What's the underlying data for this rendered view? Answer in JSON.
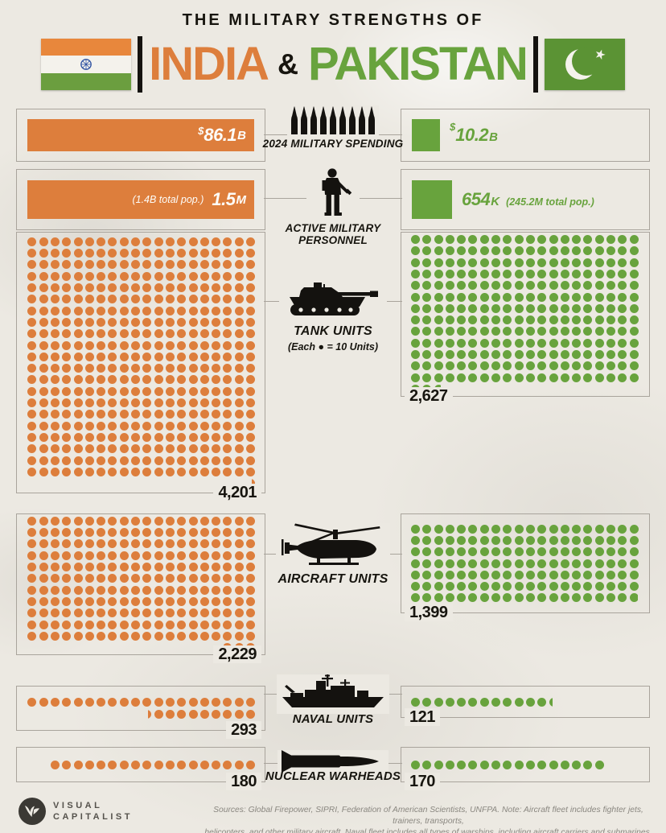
{
  "header": {
    "kicker": "THE MILITARY STRENGTHS OF",
    "country_left": "INDIA",
    "ampersand": "&",
    "country_right": "PAKISTAN"
  },
  "colors": {
    "india": "#DD7E3C",
    "pakistan": "#68A33D",
    "flag_green": "#5B9334",
    "paper": "#ECE9E2",
    "line": "#A9A49C",
    "ink": "#17150F"
  },
  "sections": {
    "spending": {
      "label": "2024 MILITARY SPENDING",
      "india": {
        "currency": "$",
        "value": "86.1",
        "suffix": "B"
      },
      "pakistan": {
        "currency": "$",
        "value": "10.2",
        "suffix": "B"
      }
    },
    "personnel": {
      "label_line1": "ACTIVE MILITARY",
      "label_line2": "PERSONNEL",
      "india": {
        "note": "(1.4B total pop.)",
        "value": "1.5",
        "suffix": "M"
      },
      "pakistan": {
        "value": "654",
        "suffix": "K",
        "note": "(245.2M total pop.)"
      }
    },
    "tanks": {
      "label": "TANK UNITS",
      "legend": "(Each ● = 10 Units)",
      "india_label": "4,201",
      "pakistan_label": "2,627"
    },
    "aircraft": {
      "label": "AIRCRAFT UNITS",
      "india_label": "2,229",
      "pakistan_label": "1,399"
    },
    "naval": {
      "label": "NAVAL UNITS",
      "india_label": "293",
      "pakistan_label": "121"
    },
    "nuclear": {
      "label": "NUCLEAR WARHEADS",
      "india_label": "180",
      "pakistan_label": "170"
    }
  },
  "chart_data": {
    "type": "pictogram",
    "title": "The Military Strengths of India & Pakistan",
    "unit_per_dot": 10,
    "columns": 20,
    "legend": "(Each ● = 10 Units)",
    "metrics": [
      {
        "id": "spending",
        "label": "2024 MILITARY SPENDING",
        "india_usd_billion": 86.1,
        "pakistan_usd_billion": 10.2,
        "display": "bar"
      },
      {
        "id": "personnel",
        "label": "ACTIVE MILITARY PERSONNEL",
        "india": "1.5M",
        "india_total_pop": "1.4B",
        "pakistan": "654K",
        "pakistan_total_pop": "245.2M",
        "display": "bar"
      },
      {
        "id": "tanks",
        "label": "TANK UNITS",
        "india": 4201,
        "pakistan": 2627,
        "display": "dots"
      },
      {
        "id": "aircraft",
        "label": "AIRCRAFT UNITS",
        "india": 2229,
        "pakistan": 1399,
        "display": "dots"
      },
      {
        "id": "naval",
        "label": "NAVAL UNITS",
        "india": 293,
        "pakistan": 121,
        "display": "dots"
      },
      {
        "id": "nuclear",
        "label": "NUCLEAR WARHEADS",
        "india": 180,
        "pakistan": 170,
        "display": "dots"
      }
    ]
  },
  "footer": {
    "logo_line1": "VISUAL",
    "logo_line2": "CAPITALIST",
    "source_line1": "Sources: Global Firepower, SIPRI, Federation of American Scientists, UNFPA. Note: Aircraft fleet includes fighter jets, trainers, transports,",
    "source_line2": "helicopters, and other military aircraft. Naval fleet includes all types of warships, including aircraft carriers and submarines."
  }
}
